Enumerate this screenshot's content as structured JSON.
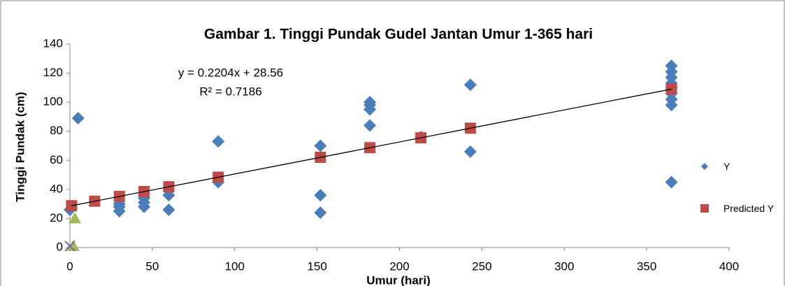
{
  "chart_data": {
    "type": "scatter",
    "title": "Gambar 1. Tinggi Pundak Gudel Jantan Umur 1-365 hari",
    "xlabel": "Umur (hari)",
    "ylabel": "Tinggi Pundak (cm)",
    "annotations": [
      "y = 0.2204x + 28.56",
      "R² = 0.7186"
    ],
    "xlim": [
      0,
      400
    ],
    "xticks": [
      0,
      50,
      100,
      150,
      200,
      250,
      300,
      350,
      400
    ],
    "ylim": [
      0,
      140
    ],
    "yticks": [
      0,
      20,
      40,
      60,
      80,
      100,
      120,
      140
    ],
    "grid": false,
    "legend": "right",
    "series": [
      {
        "name": "Y",
        "color": "#4a7ebb",
        "marker": "diamond",
        "x": [
          0,
          5,
          30,
          30,
          30,
          45,
          45,
          45,
          60,
          60,
          90,
          90,
          152,
          152,
          152,
          182,
          182,
          182,
          182,
          213,
          243,
          243,
          365,
          365,
          365,
          365,
          365,
          365,
          365,
          365,
          365
        ],
        "values": [
          26,
          89,
          25,
          28,
          30,
          28,
          31,
          34,
          26,
          36,
          45,
          73,
          24,
          36,
          70,
          84,
          95,
          98,
          100,
          76,
          66,
          112,
          45,
          98,
          102,
          106,
          110,
          113,
          117,
          121,
          125
        ]
      },
      {
        "name": "Predicted Y",
        "color": "#be4b48",
        "marker": "square",
        "x": [
          1,
          15,
          30,
          45,
          60,
          90,
          152,
          182,
          213,
          243,
          365
        ],
        "values": [
          28.8,
          31.9,
          35.2,
          38.5,
          41.8,
          48.4,
          62.1,
          68.7,
          75.5,
          82.1,
          109.0
        ]
      },
      {
        "color": "#9bbb59",
        "marker": "triangle",
        "x": [
          3,
          2
        ],
        "values": [
          20,
          1
        ]
      },
      {
        "color": "#7d60a0",
        "marker": "x",
        "x": [
          0
        ],
        "values": [
          1
        ]
      },
      {
        "color": "#000000",
        "marker": "line",
        "x": [
          1,
          365
        ],
        "values": [
          28.78,
          109.0
        ]
      }
    ]
  }
}
